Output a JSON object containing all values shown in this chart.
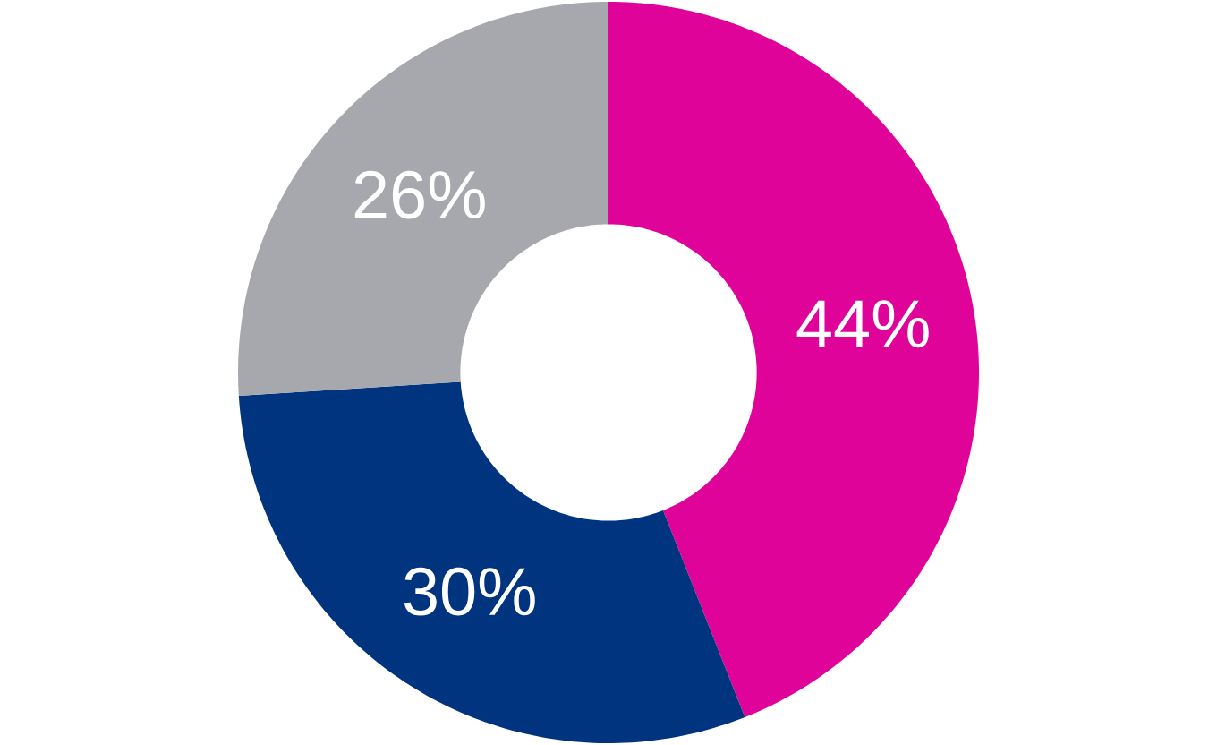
{
  "chart_data": {
    "type": "donut",
    "categories": [
      null,
      null,
      null
    ],
    "values": [
      44,
      30,
      26
    ],
    "colors": [
      "#e0039a",
      "#00347f",
      "#a7a8ae"
    ],
    "value_labels": [
      "44%",
      "30%",
      "26%"
    ]
  }
}
